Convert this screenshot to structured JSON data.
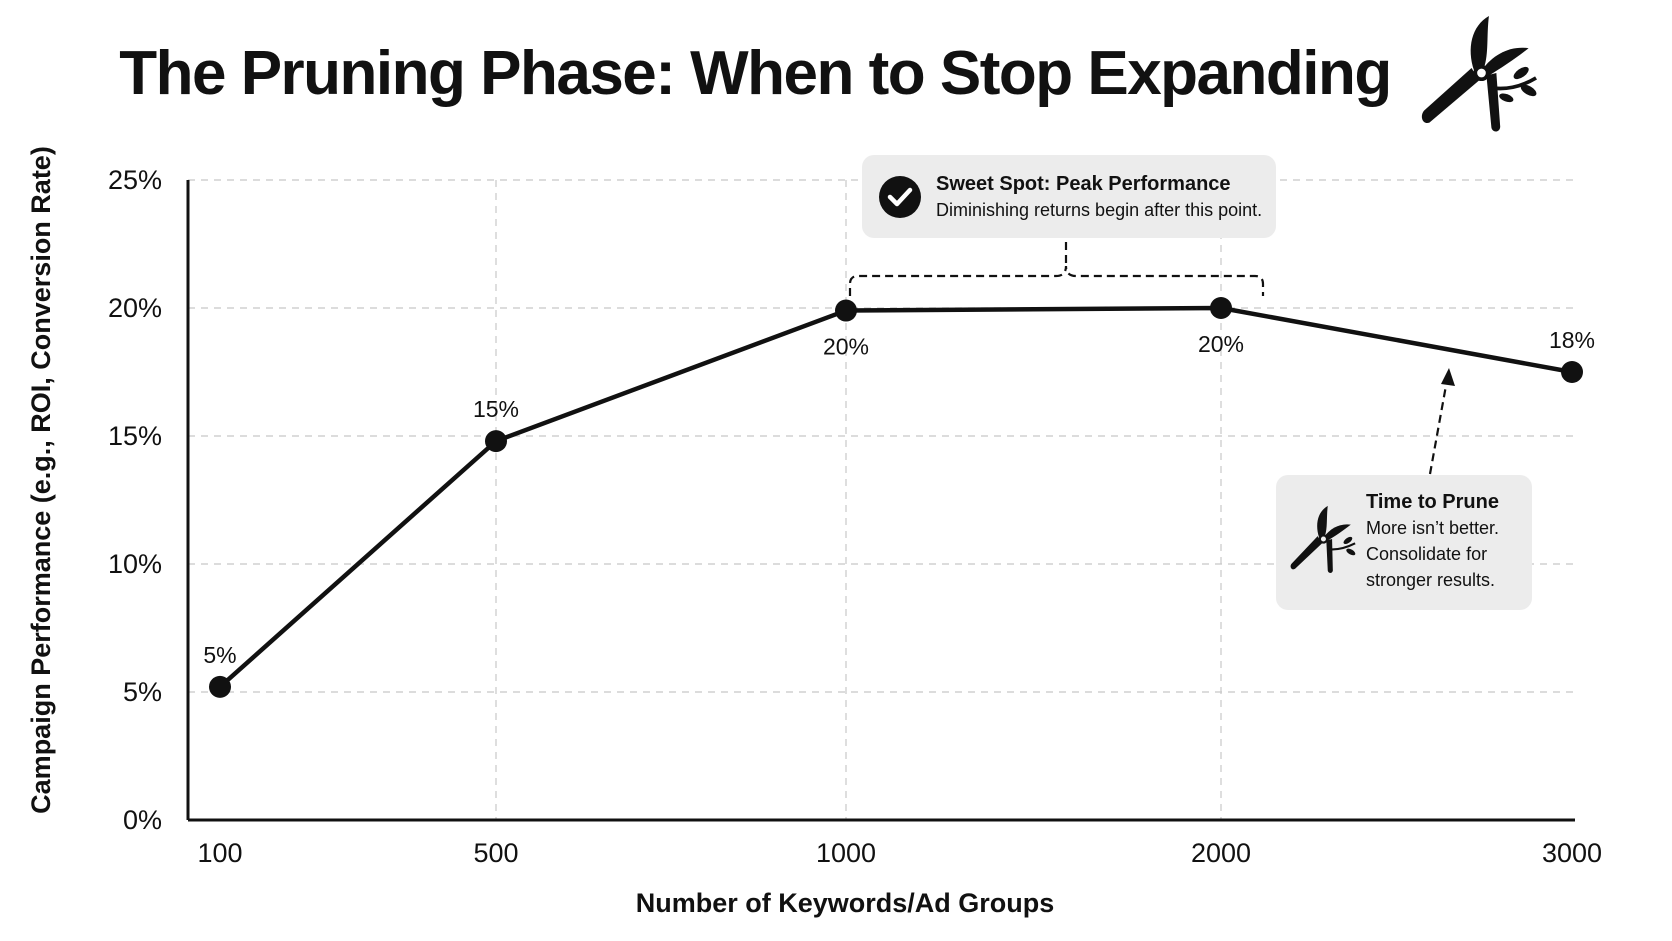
{
  "chart_data": {
    "type": "line",
    "title": "The Pruning Phase: When to Stop Expanding",
    "xlabel": "Number of Keywords/Ad Groups",
    "ylabel": "Campaign Performance (e.g., ROI, Conversion Rate)",
    "categories": [
      "100",
      "500",
      "1000",
      "2000",
      "3000"
    ],
    "values": [
      5.2,
      14.8,
      19.9,
      20.0,
      17.5
    ],
    "data_labels": [
      "5%",
      "15%",
      "20%",
      "20%",
      "18%"
    ],
    "y_ticks": [
      "0%",
      "5%",
      "10%",
      "15%",
      "20%",
      "25%"
    ],
    "ylim": [
      0,
      25
    ],
    "grid": true,
    "legend": "none",
    "line_color": "#111111",
    "annotations": [
      {
        "id": "sweet-spot",
        "title": "Sweet Spot: Peak Performance",
        "text": "Diminishing returns begin after this point.",
        "icon": "check-circle-icon",
        "span_categories": [
          "1000",
          "2000"
        ]
      },
      {
        "id": "time-to-prune",
        "title": "Time to Prune",
        "lines": [
          "More isn’t better.",
          "Consolidate for",
          "stronger results."
        ],
        "icon": "pruning-shears-icon",
        "points_to": "2000-3000 segment"
      }
    ]
  },
  "title_icon": "pruning-shears-icon"
}
